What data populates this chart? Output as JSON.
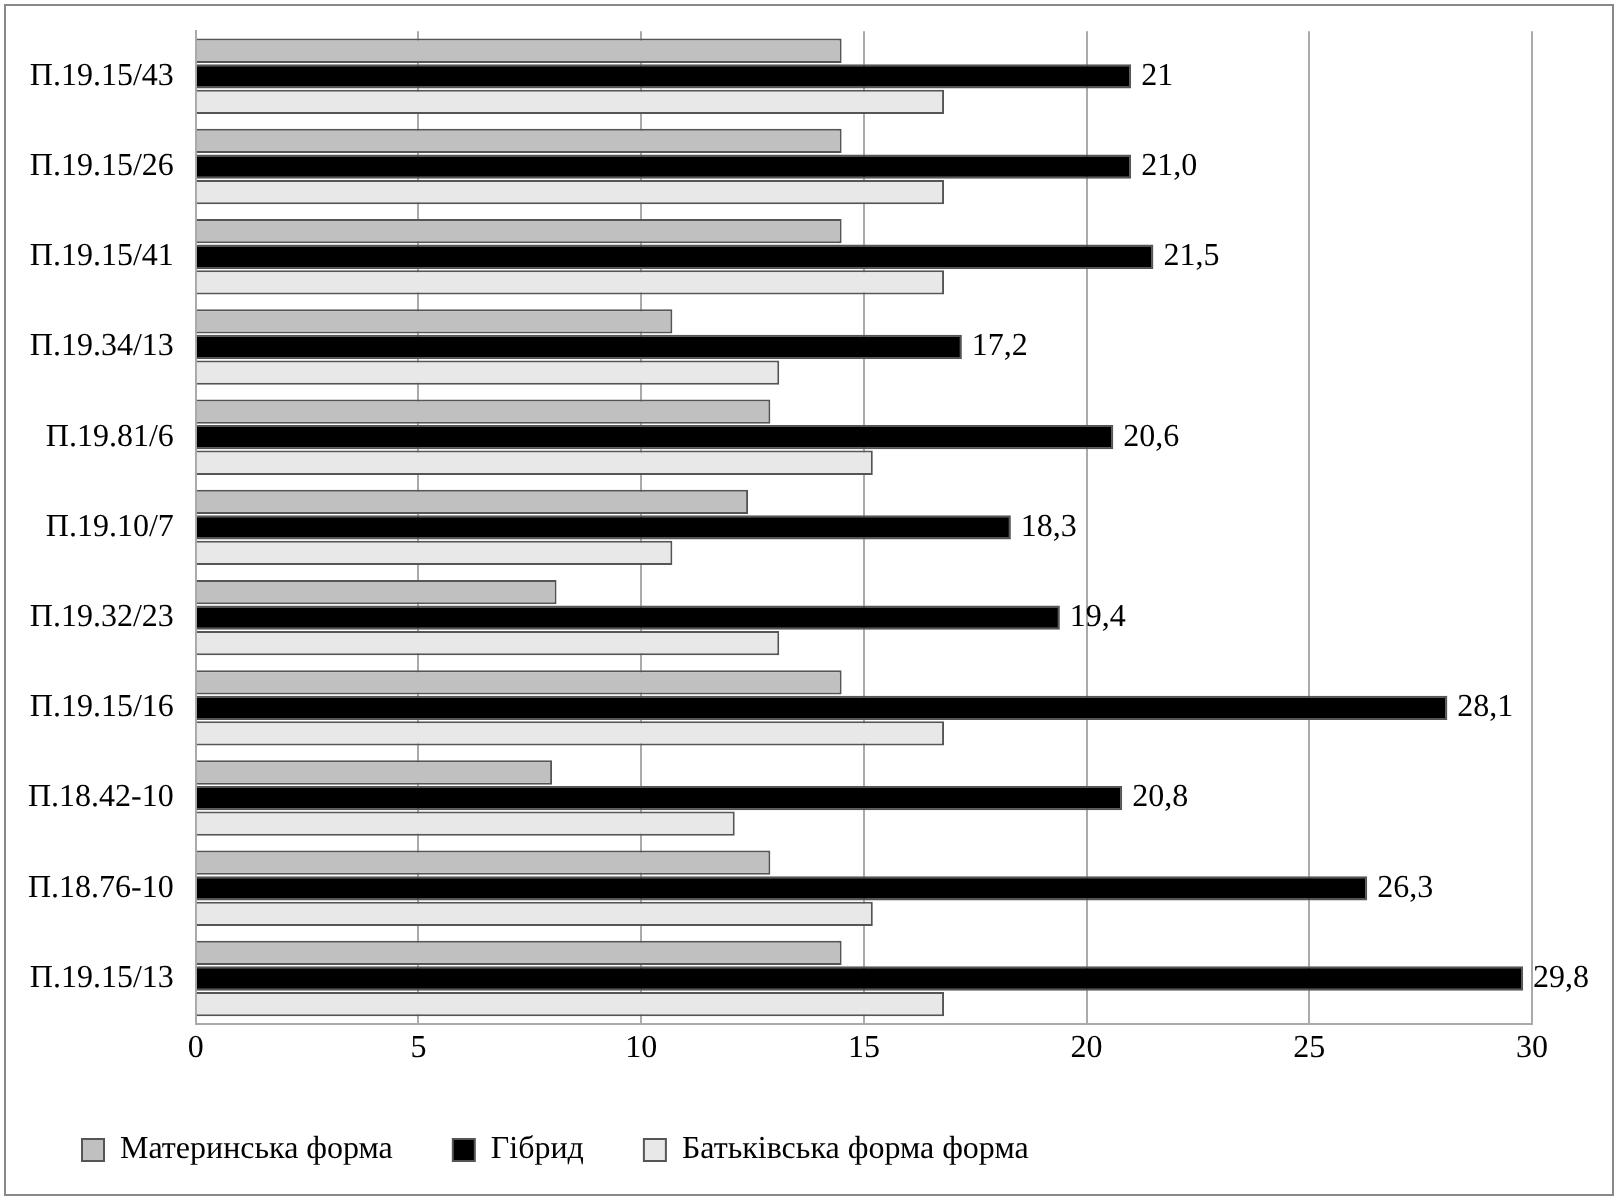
{
  "chart_data": {
    "type": "bar",
    "orientation": "horizontal",
    "categories": [
      "П.19.15/43",
      "П.19.15/26",
      "П.19.15/41",
      "П.19.34/13",
      "П.19.81/6",
      "П.19.10/7",
      "П.19.32/23",
      "П.19.15/16",
      "П.18.42-10",
      "П.18.76-10",
      "П.19.15/13"
    ],
    "series": [
      {
        "name": "Материнська форма",
        "color": "#c0c0c0",
        "values": [
          14.5,
          14.5,
          14.5,
          10.7,
          12.9,
          12.4,
          8.1,
          14.5,
          8.0,
          12.9,
          14.5
        ]
      },
      {
        "name": "Гібрид",
        "color": "#000000",
        "values": [
          21,
          21.0,
          21.5,
          17.2,
          20.6,
          18.3,
          19.4,
          28.1,
          20.8,
          26.3,
          29.8
        ],
        "value_labels": [
          "21",
          "21,0",
          "21,5",
          "17,2",
          "20,6",
          "18,3",
          "19,4",
          "28,1",
          "20,8",
          "26,3",
          "29,8"
        ]
      },
      {
        "name": "Батьківська форма форма",
        "color": "#e8e8e8",
        "values": [
          16.8,
          16.8,
          16.8,
          13.1,
          15.2,
          10.7,
          13.1,
          16.8,
          12.1,
          15.2,
          16.8
        ]
      }
    ],
    "xlim": [
      0,
      30
    ],
    "xticks": [
      0,
      5,
      10,
      15,
      20,
      25,
      30
    ],
    "grid": "x",
    "legend": "bottom"
  }
}
